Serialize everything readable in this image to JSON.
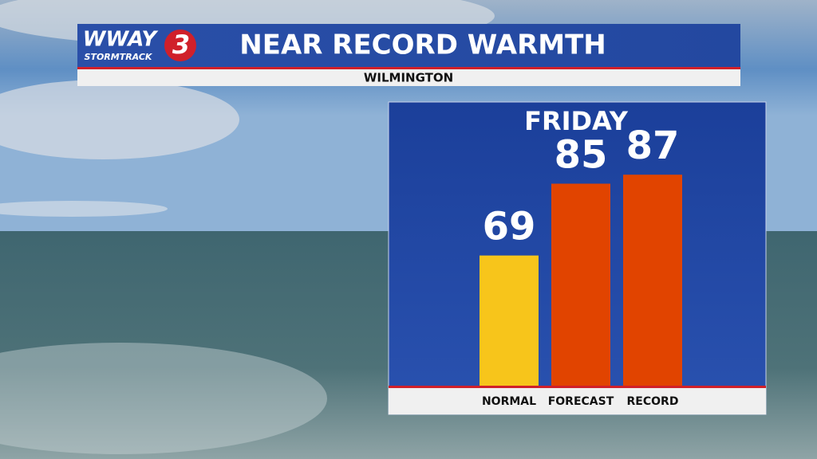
{
  "header": {
    "logo": "WWAY",
    "logo_sub": "STORMTRACK",
    "logo_number": "3",
    "title": "NEAR RECORD WARMTH",
    "subtitle": "WILMINGTON"
  },
  "chart_data": {
    "type": "bar",
    "title": "FRIDAY",
    "categories": [
      "NORMAL",
      "FORECAST",
      "RECORD"
    ],
    "series": [
      {
        "values": [
          69,
          85,
          87
        ],
        "colors": [
          "#f7c51b",
          "#e14400",
          "#e14400"
        ]
      }
    ],
    "ylim": [
      40,
      100
    ]
  }
}
